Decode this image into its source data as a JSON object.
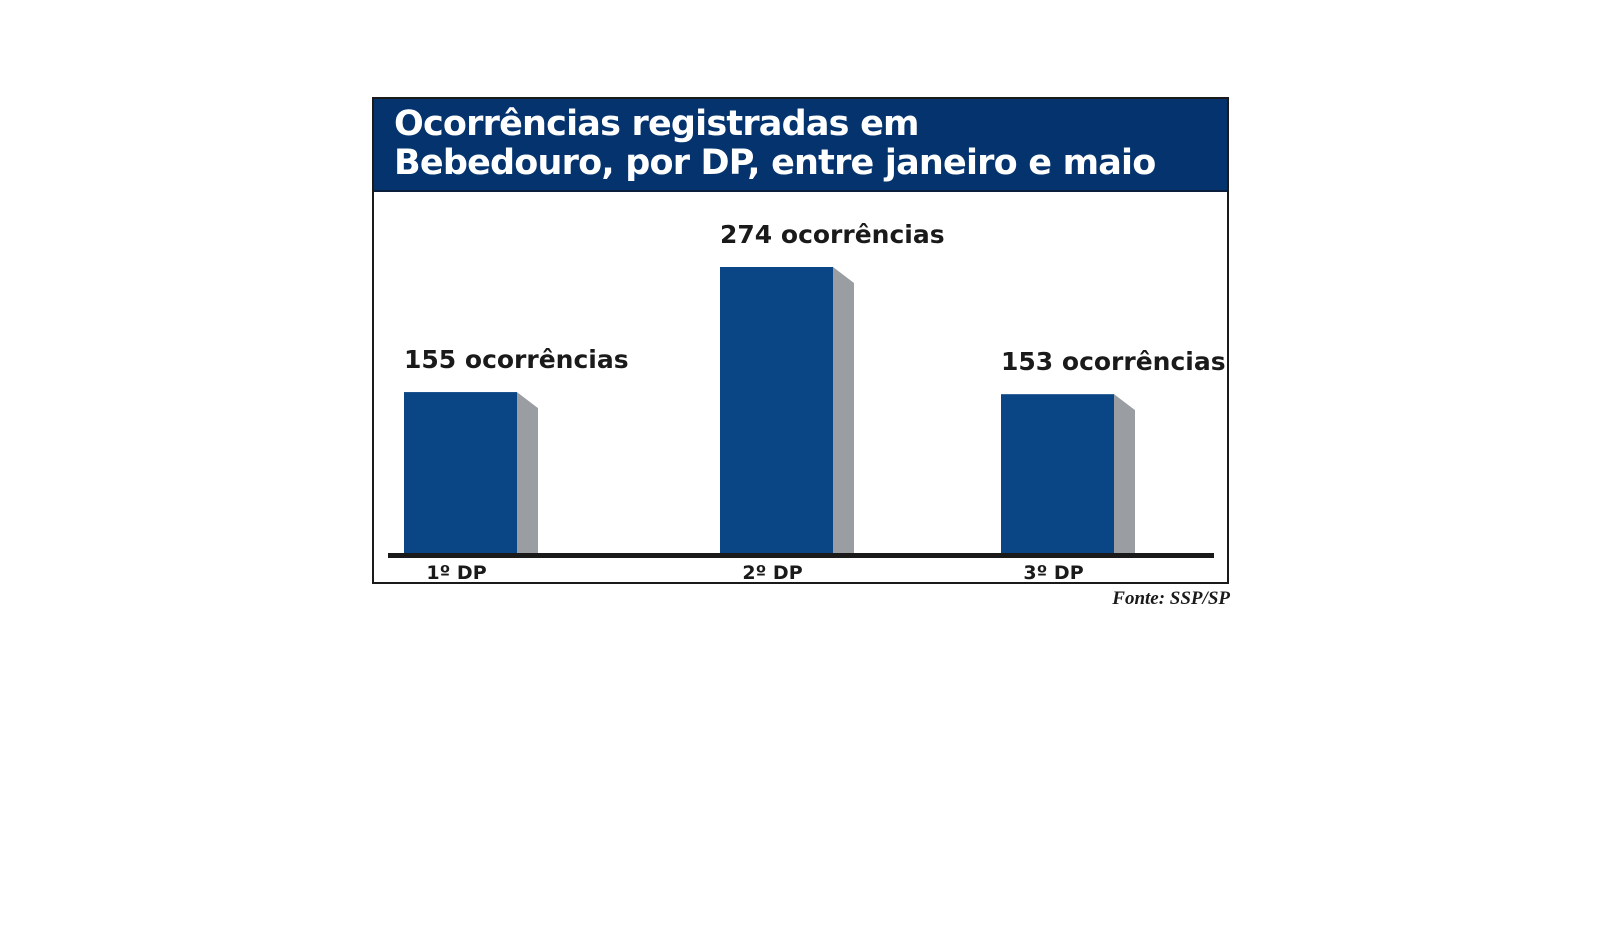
{
  "chart_data": {
    "type": "bar",
    "title": "Ocorrências registradas em\nBebedouro, por DP, entre janeiro e maio",
    "categories": [
      "1º DP",
      "2º DP",
      "3º DP"
    ],
    "values": [
      155,
      274,
      153
    ],
    "data_labels": [
      "155 ocorrências",
      "274 ocorrências",
      "153 ocorrências"
    ],
    "ylim": [
      0,
      274
    ],
    "grid": false,
    "legend": "none",
    "source": "Fonte: SSP/SP"
  },
  "colors": {
    "title_background": "#04336e",
    "title_text": "#ffffff",
    "bar_front": "#0a4585",
    "bar_side": "#9a9ea3",
    "baseline": "#1a1a1a"
  }
}
